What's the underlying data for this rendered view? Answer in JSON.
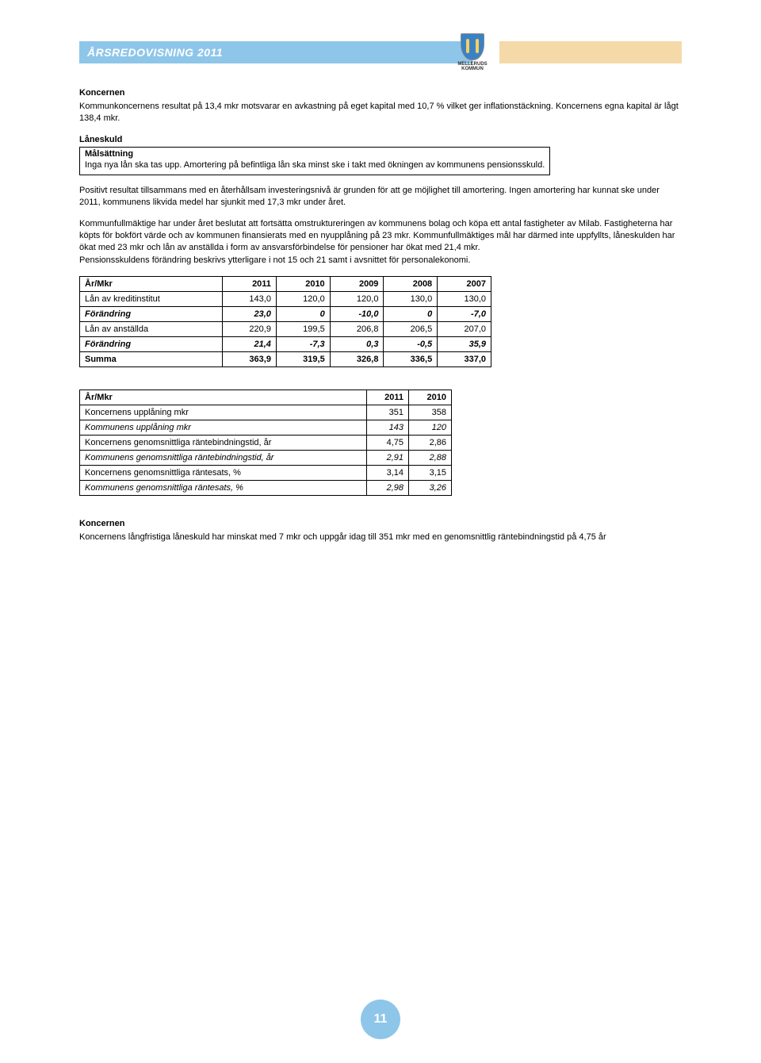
{
  "header": {
    "title": "ÅRSREDOVISNING 2011",
    "logo_line1": "MELLERUDS",
    "logo_line2": "KOMMUN"
  },
  "colors": {
    "header_bg": "#8ec6ea",
    "header_right_bg": "#f5d9a8",
    "shield_bg": "#3b82c4",
    "circle_bg": "#8ec6ea"
  },
  "text": {
    "koncernen_h": "Koncernen",
    "koncernen_p": "Kommunkoncernens resultat på 13,4 mkr motsvarar en avkastning på eget kapital med 10,7 % vilket ger inflationstäckning. Koncernens egna kapital är lågt 138,4 mkr.",
    "laneskuld_h": "Låneskuld",
    "malsattning_h": "Målsättning",
    "malsattning_p": "Inga nya lån ska tas upp. Amortering på befintliga lån ska minst ske i takt med ökningen av kommunens pensionsskuld.",
    "positiv_p": "Positivt resultat tillsammans med en återhållsam investeringsnivå är grunden för att ge möjlighet till amortering. Ingen amortering har kunnat ske under 2011, kommunens likvida medel har sjunkit med 17,3 mkr under året.",
    "kommun_p1": "Kommunfullmäktige har under året beslutat att fortsätta omstruktureringen av kommunens bolag och köpa ett antal fastigheter av Milab. Fastigheterna har köpts för bokfört värde och av kommunen finansierats med en nyupplåning på 23 mkr. Kommunfullmäktiges mål har därmed inte uppfyllts, låneskulden har ökat med 23 mkr och lån av anställda i form av ansvarsförbindelse för pensioner har ökat med 21,4 mkr.",
    "kommun_p2": "Pensionsskuldens förändring beskrivs ytterligare i not 15 och 21 samt i avsnittet för personalekonomi.",
    "koncernen2_h": "Koncernen",
    "koncernen2_p": "Koncernens långfristiga låneskuld har minskat med 7 mkr och uppgår idag till 351 mkr med en genomsnittlig räntebindningstid på 4,75 år"
  },
  "table1": {
    "headers": [
      "År/Mkr",
      "2011",
      "2010",
      "2009",
      "2008",
      "2007"
    ],
    "rows": [
      {
        "label": "Lån av kreditinstitut",
        "vals": [
          "143,0",
          "120,0",
          "120,0",
          "130,0",
          "130,0"
        ],
        "italic": false,
        "bold": false
      },
      {
        "label": "Förändring",
        "vals": [
          "23,0",
          "0",
          "-10,0",
          "0",
          "-7,0"
        ],
        "italic": true,
        "bold": true
      },
      {
        "label": "Lån av anställda",
        "vals": [
          "220,9",
          "199,5",
          "206,8",
          "206,5",
          "207,0"
        ],
        "italic": false,
        "bold": false
      },
      {
        "label": "Förändring",
        "vals": [
          "21,4",
          "-7,3",
          "0,3",
          "-0,5",
          "35,9"
        ],
        "italic": true,
        "bold": true
      },
      {
        "label": "Summa",
        "vals": [
          "363,9",
          "319,5",
          "326,8",
          "336,5",
          "337,0"
        ],
        "italic": false,
        "bold": true
      }
    ]
  },
  "table2": {
    "headers": [
      "År/Mkr",
      "2011",
      "2010"
    ],
    "rows": [
      {
        "label": "Koncernens upplåning mkr",
        "vals": [
          "351",
          "358"
        ],
        "italic": false
      },
      {
        "label": "Kommunens upplåning mkr",
        "vals": [
          "143",
          "120"
        ],
        "italic": true
      },
      {
        "label": "Koncernens genomsnittliga räntebindningstid, år",
        "vals": [
          "4,75",
          "2,86"
        ],
        "italic": false
      },
      {
        "label": "Kommunens genomsnittliga räntebindningstid, år",
        "vals": [
          "2,91",
          "2,88"
        ],
        "italic": true
      },
      {
        "label": "Koncernens genomsnittliga räntesats, %",
        "vals": [
          "3,14",
          "3,15"
        ],
        "italic": false
      },
      {
        "label": "Kommunens genomsnittliga räntesats, %",
        "vals": [
          "2,98",
          "3,26"
        ],
        "italic": true
      }
    ]
  },
  "page_number": "11"
}
